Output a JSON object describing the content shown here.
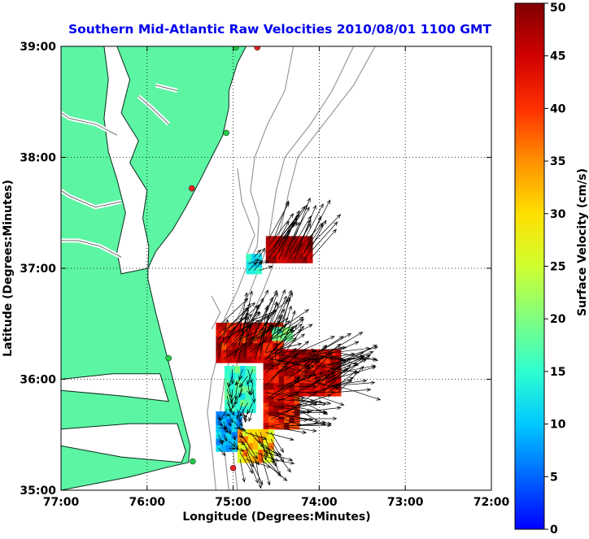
{
  "chart_data": [
    {
      "type": "map",
      "title": "Southern Mid-Atlantic Raw Velocities 2010/08/01 1100 GMT",
      "xlabel": "Longitude (Degrees:Minutes)",
      "ylabel": "Latitude (Degrees:Minutes)",
      "xlim": [
        -77,
        -72
      ],
      "ylim": [
        35,
        39
      ],
      "x_ticks": [
        {
          "value": -77,
          "label": "77:00"
        },
        {
          "value": -76,
          "label": "76:00"
        },
        {
          "value": -75,
          "label": "75:00"
        },
        {
          "value": -74,
          "label": "74:00"
        },
        {
          "value": -73,
          "label": "73:00"
        },
        {
          "value": -72,
          "label": "72:00"
        }
      ],
      "y_ticks": [
        {
          "value": 35,
          "label": "35:00"
        },
        {
          "value": 36,
          "label": "36:00"
        },
        {
          "value": 37,
          "label": "37:00"
        },
        {
          "value": 38,
          "label": "38:00"
        },
        {
          "value": 39,
          "label": "39:00"
        }
      ],
      "grid": true,
      "colors": {
        "land": "#5cf5a4",
        "coast": "#0a2a1a",
        "bathymetry": "#9a9a9a",
        "title": "#0000ee",
        "arrow": "#000000"
      },
      "stations": [
        {
          "lon": -74.72,
          "lat": 38.99,
          "color": "#ee2222"
        },
        {
          "lon": -74.97,
          "lat": 38.99,
          "color": "#22cc44"
        },
        {
          "lon": -75.08,
          "lat": 38.22,
          "color": "#22cc44"
        },
        {
          "lon": -75.48,
          "lat": 37.72,
          "color": "#ee2222"
        },
        {
          "lon": -75.75,
          "lat": 36.19,
          "color": "#22cc44"
        },
        {
          "lon": -75.47,
          "lat": 35.26,
          "color": "#22cc44"
        },
        {
          "lon": -75.0,
          "lat": 35.2,
          "color": "#ee2222"
        }
      ],
      "velocity_clusters": [
        {
          "lon": [
            -75.2,
            -74.45
          ],
          "lat": [
            36.15,
            36.5
          ],
          "speed": [
            38,
            50
          ],
          "bearing": [
            5,
            70
          ]
        },
        {
          "lon": [
            -74.65,
            -73.75
          ],
          "lat": [
            35.85,
            36.25
          ],
          "speed": [
            40,
            50
          ],
          "bearing": [
            40,
            110
          ]
        },
        {
          "lon": [
            -74.65,
            -74.25
          ],
          "lat": [
            35.55,
            35.85
          ],
          "speed": [
            38,
            50
          ],
          "bearing": [
            50,
            120
          ]
        },
        {
          "lon": [
            -75.1,
            -74.75
          ],
          "lat": [
            35.7,
            36.1
          ],
          "speed": [
            12,
            20
          ],
          "bearing": [
            150,
            220
          ]
        },
        {
          "lon": [
            -75.2,
            -74.9
          ],
          "lat": [
            35.35,
            35.7
          ],
          "speed": [
            5,
            12
          ],
          "bearing": [
            90,
            170
          ]
        },
        {
          "lon": [
            -74.95,
            -74.55
          ],
          "lat": [
            35.25,
            35.55
          ],
          "speed": [
            25,
            38
          ],
          "bearing": [
            100,
            170
          ]
        },
        {
          "lon": [
            -74.55,
            -74.35
          ],
          "lat": [
            36.35,
            36.45
          ],
          "speed": [
            15,
            22
          ],
          "bearing": [
            20,
            60
          ]
        },
        {
          "lon": [
            -74.62,
            -74.1
          ],
          "lat": [
            37.05,
            37.25
          ],
          "speed": [
            44,
            50
          ],
          "bearing": [
            20,
            45
          ]
        },
        {
          "lon": [
            -74.85,
            -74.7
          ],
          "lat": [
            36.95,
            37.08
          ],
          "speed": [
            10,
            16
          ],
          "bearing": [
            30,
            80
          ]
        }
      ],
      "colorbar": {
        "label": "Surface Velocity (cm/s)",
        "min": 0,
        "max": 50,
        "tick_labels": [
          "0",
          "5",
          "10",
          "15",
          "20",
          "25",
          "30",
          "35",
          "40",
          "45",
          "50"
        ],
        "colormap": "jet"
      }
    }
  ]
}
